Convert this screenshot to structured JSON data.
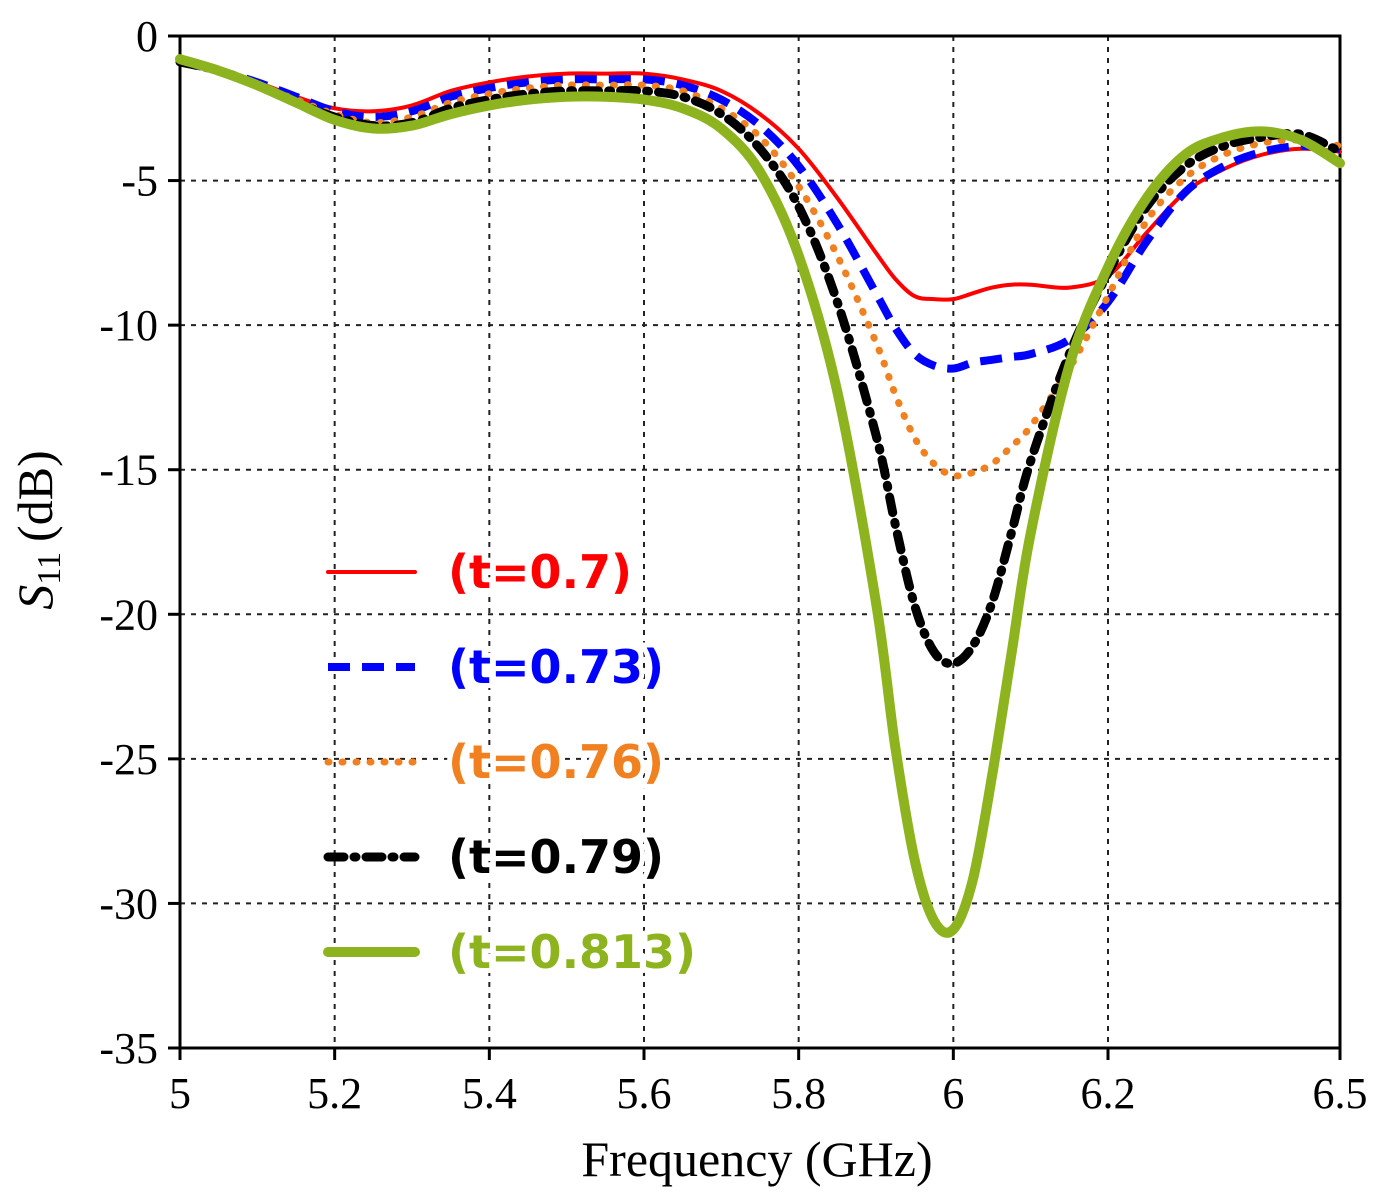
{
  "chart_data": {
    "type": "line",
    "title": "",
    "xlabel": "Frequency (GHz)",
    "ylabel_symbol": "S",
    "ylabel_subscript": "11",
    "ylabel_unit": "(dB)",
    "xlim": [
      5,
      6.5
    ],
    "ylim": [
      -35,
      0
    ],
    "xticks": [
      5,
      5.2,
      5.4,
      5.6,
      5.8,
      6,
      6.2,
      6.5
    ],
    "xtick_labels": [
      "5",
      "5.2",
      "5.4",
      "5.6",
      "5.8",
      "6",
      "6.2",
      "6.5"
    ],
    "yticks": [
      0,
      -5,
      -10,
      -15,
      -20,
      -25,
      -30,
      -35
    ],
    "ytick_labels": [
      "0",
      "-5",
      "-10",
      "-15",
      "-20",
      "-25",
      "-30",
      "-35"
    ],
    "grid": true,
    "legend_position": "lower-left",
    "x": [
      5.0,
      5.05,
      5.1,
      5.15,
      5.2,
      5.25,
      5.3,
      5.35,
      5.4,
      5.45,
      5.5,
      5.55,
      5.6,
      5.65,
      5.7,
      5.75,
      5.8,
      5.85,
      5.9,
      5.925,
      5.95,
      5.975,
      6.0,
      6.025,
      6.05,
      6.075,
      6.1,
      6.15,
      6.2,
      6.25,
      6.3,
      6.35,
      6.4,
      6.45,
      6.5
    ],
    "series": [
      {
        "name": "(t=0.7)",
        "color": "#ff0000",
        "style": "solid",
        "values": [
          -0.9,
          -1.2,
          -1.6,
          -2.1,
          -2.5,
          -2.6,
          -2.4,
          -1.9,
          -1.6,
          -1.4,
          -1.3,
          -1.3,
          -1.3,
          -1.5,
          -1.9,
          -2.7,
          -3.9,
          -5.6,
          -7.5,
          -8.4,
          -9.0,
          -9.1,
          -9.1,
          -8.9,
          -8.7,
          -8.6,
          -8.6,
          -8.7,
          -8.3,
          -6.8,
          -5.4,
          -4.6,
          -4.1,
          -3.9,
          -4.0
        ]
      },
      {
        "name": "(t=0.73)",
        "color": "#0000ff",
        "style": "dashed",
        "values": [
          -0.9,
          -1.2,
          -1.6,
          -2.1,
          -2.6,
          -2.8,
          -2.6,
          -2.1,
          -1.8,
          -1.6,
          -1.5,
          -1.5,
          -1.5,
          -1.7,
          -2.2,
          -3.1,
          -4.5,
          -6.5,
          -8.9,
          -10.1,
          -11.0,
          -11.4,
          -11.5,
          -11.3,
          -11.2,
          -11.1,
          -11.0,
          -10.5,
          -9.2,
          -7.1,
          -5.4,
          -4.5,
          -4.0,
          -3.8,
          -3.9
        ]
      },
      {
        "name": "(t=0.76)",
        "color": "#f08020",
        "style": "dotted",
        "values": [
          -0.9,
          -1.2,
          -1.7,
          -2.2,
          -2.7,
          -3.0,
          -2.8,
          -2.3,
          -2.0,
          -1.8,
          -1.7,
          -1.7,
          -1.7,
          -1.9,
          -2.5,
          -3.5,
          -5.2,
          -7.6,
          -10.6,
          -12.4,
          -13.9,
          -14.8,
          -15.2,
          -15.1,
          -14.8,
          -14.2,
          -13.5,
          -11.5,
          -9.0,
          -6.4,
          -4.9,
          -4.1,
          -3.7,
          -3.6,
          -3.8
        ]
      },
      {
        "name": "(t=0.79)",
        "color": "#000000",
        "style": "dashdot",
        "values": [
          -0.9,
          -1.2,
          -1.7,
          -2.3,
          -2.8,
          -3.1,
          -3.0,
          -2.5,
          -2.2,
          -2.0,
          -1.9,
          -1.9,
          -1.9,
          -2.1,
          -2.7,
          -3.9,
          -5.9,
          -9.2,
          -13.8,
          -16.9,
          -19.7,
          -21.3,
          -21.7,
          -21.1,
          -19.6,
          -17.2,
          -14.7,
          -11.0,
          -8.2,
          -5.9,
          -4.5,
          -3.8,
          -3.5,
          -3.4,
          -4.0
        ]
      },
      {
        "name": "(t=0.813)",
        "color": "#8db41e",
        "style": "solid-thick",
        "values": [
          -0.8,
          -1.2,
          -1.7,
          -2.3,
          -2.9,
          -3.2,
          -3.1,
          -2.7,
          -2.4,
          -2.2,
          -2.1,
          -2.1,
          -2.2,
          -2.5,
          -3.2,
          -4.7,
          -7.6,
          -12.3,
          -19.6,
          -24.6,
          -28.5,
          -30.6,
          -30.9,
          -29.2,
          -25.6,
          -21.4,
          -17.2,
          -11.4,
          -8.0,
          -5.6,
          -4.1,
          -3.5,
          -3.3,
          -3.6,
          -4.4
        ]
      }
    ]
  }
}
